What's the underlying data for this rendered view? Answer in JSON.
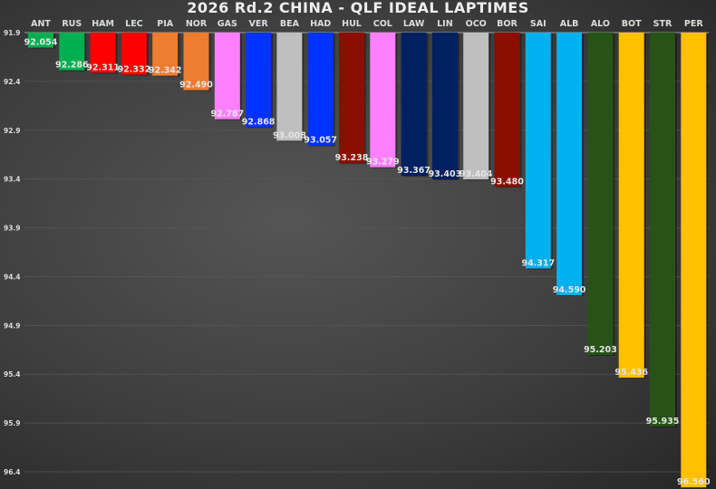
{
  "chart_data": {
    "type": "bar",
    "orientation": "vertical, bars hang from top (inverted y axis)",
    "title": "2026 Rd.2 CHINA - QLF IDEAL LAPTIMES",
    "xlabel": "",
    "ylabel": "",
    "ylim": [
      91.9,
      96.56
    ],
    "yticks": [
      "91.9",
      "92.4",
      "92.9",
      "93.4",
      "93.9",
      "94.4",
      "94.9",
      "95.4",
      "95.9",
      "96.4"
    ],
    "grid": true,
    "categories": [
      "ANT",
      "RUS",
      "HAM",
      "LEC",
      "PIA",
      "NOR",
      "GAS",
      "VER",
      "BEA",
      "HAD",
      "HUL",
      "COL",
      "LAW",
      "LIN",
      "OCO",
      "BOR",
      "SAI",
      "ALB",
      "ALO",
      "BOT",
      "STR",
      "PER"
    ],
    "values": [
      92.054,
      92.286,
      92.311,
      92.332,
      92.342,
      92.49,
      92.787,
      92.868,
      93.008,
      93.057,
      93.238,
      93.279,
      93.367,
      93.403,
      93.404,
      93.48,
      94.317,
      94.59,
      95.203,
      95.436,
      95.935,
      96.56
    ],
    "labels": [
      "92.054",
      "92.286",
      "92.311",
      "92.332",
      "92.342",
      "92.490",
      "92.787",
      "92.868",
      "93.008",
      "93.057",
      "93.238",
      "93.279",
      "93.367",
      "93.403",
      "93.404",
      "93.480",
      "94.317",
      "94.590",
      "95.203",
      "95.436",
      "95.935",
      "96.560"
    ],
    "colors": [
      "#00b050",
      "#00b050",
      "#ff0000",
      "#ff0000",
      "#ed7d31",
      "#ed7d31",
      "#ff80ff",
      "#0033ff",
      "#bfbfbf",
      "#0033ff",
      "#8b0f00",
      "#ff80ff",
      "#002060",
      "#002060",
      "#bfbfbf",
      "#8b0f00",
      "#00b0f0",
      "#00b0f0",
      "#275317",
      "#ffc000",
      "#275317",
      "#ffc000"
    ]
  }
}
